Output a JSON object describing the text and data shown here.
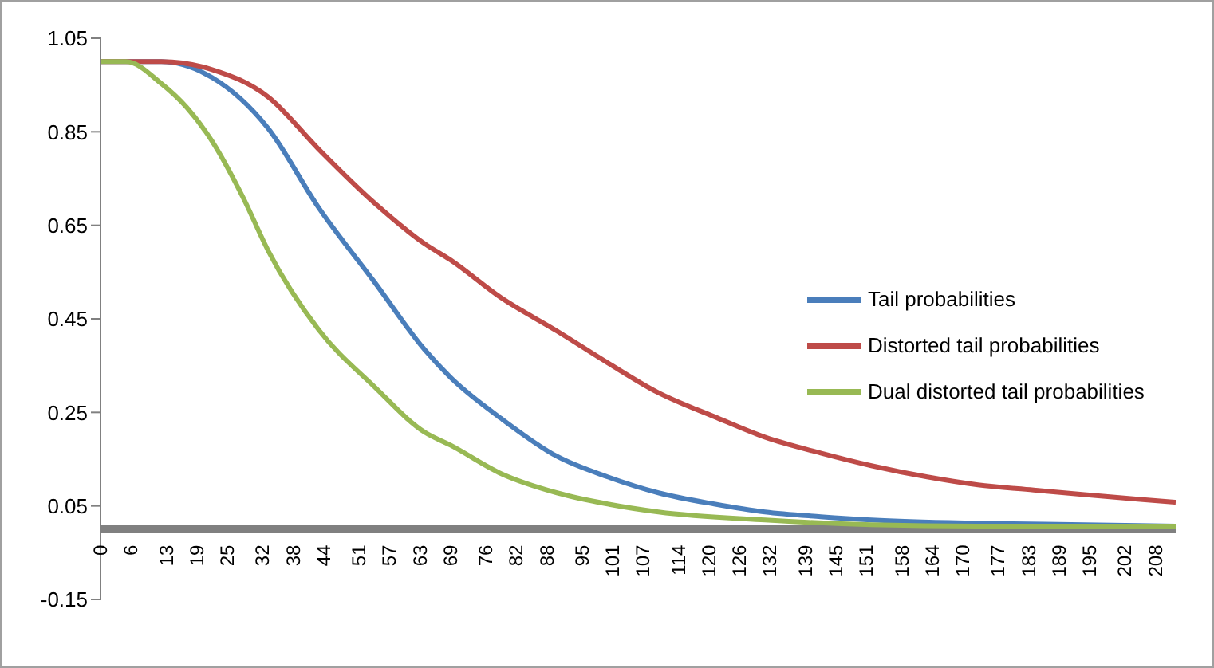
{
  "chart_data": {
    "type": "line",
    "xlim": [
      0,
      212
    ],
    "xticks": [
      0,
      6,
      13,
      19,
      25,
      32,
      38,
      44,
      51,
      57,
      63,
      69,
      76,
      82,
      88,
      95,
      101,
      107,
      114,
      120,
      126,
      132,
      139,
      145,
      151,
      158,
      164,
      170,
      177,
      183,
      189,
      195,
      202,
      208
    ],
    "ylim": [
      -0.15,
      1.05
    ],
    "yticks": [
      -0.15,
      0.05,
      0.25,
      0.45,
      0.65,
      0.85,
      1.05
    ],
    "grid": false,
    "legend": "right",
    "marker": "none",
    "line_style": "solid",
    "series": [
      {
        "name": "Tail probabilities",
        "color": "#4a7ebb",
        "x": [
          0,
          6,
          12,
          22,
          33,
          43,
          54,
          64,
          69,
          79,
          90,
          100,
          110,
          121,
          131,
          142,
          152,
          173,
          194,
          212
        ],
        "values": [
          1,
          1,
          1,
          0.966,
          0.858,
          0.688,
          0.529,
          0.383,
          0.325,
          0.237,
          0.156,
          0.112,
          0.078,
          0.054,
          0.037,
          0.027,
          0.02,
          0.013,
          0.01,
          0.007
        ]
      },
      {
        "name": "Distorted tail probabilities",
        "color": "#be4b48",
        "x": [
          0,
          6,
          12,
          22,
          33,
          43,
          54,
          64,
          69,
          79,
          90,
          100,
          110,
          121,
          131,
          142,
          152,
          163,
          173,
          184,
          194,
          205,
          212
        ],
        "values": [
          1,
          1,
          1,
          0.983,
          0.925,
          0.813,
          0.698,
          0.61,
          0.576,
          0.495,
          0.424,
          0.356,
          0.292,
          0.241,
          0.197,
          0.163,
          0.136,
          0.112,
          0.095,
          0.084,
          0.074,
          0.064,
          0.058
        ]
      },
      {
        "name": "Dual distorted tail probabilities",
        "color": "#98b954",
        "x": [
          0,
          5,
          12,
          17,
          22,
          28,
          33,
          43,
          54,
          64,
          69,
          79,
          90,
          100,
          110,
          131,
          152,
          173,
          212
        ],
        "values": [
          1,
          1,
          0.953,
          0.902,
          0.83,
          0.712,
          0.597,
          0.427,
          0.305,
          0.207,
          0.18,
          0.119,
          0.078,
          0.054,
          0.037,
          0.02,
          0.01,
          0.007,
          0.007
        ]
      }
    ]
  }
}
